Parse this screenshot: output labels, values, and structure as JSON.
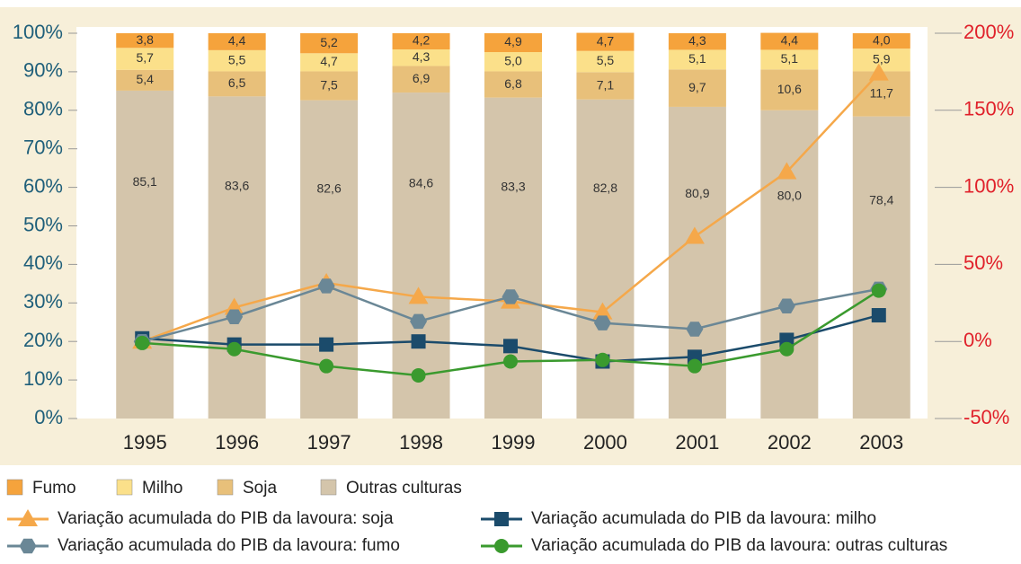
{
  "chart_data": {
    "type": "bar",
    "categories": [
      "1995",
      "1996",
      "1997",
      "1998",
      "1999",
      "2000",
      "2001",
      "2002",
      "2003"
    ],
    "ylim": [
      0,
      100
    ],
    "yticks": [
      {
        "value": 0,
        "label": "0%"
      },
      {
        "value": 10,
        "label": "10%"
      },
      {
        "value": 20,
        "label": "20%"
      },
      {
        "value": 30,
        "label": "30%"
      },
      {
        "value": 40,
        "label": "40%"
      },
      {
        "value": 50,
        "label": "50%"
      },
      {
        "value": 60,
        "label": "60%"
      },
      {
        "value": 70,
        "label": "70%"
      },
      {
        "value": 80,
        "label": "80%"
      },
      {
        "value": 90,
        "label": "90%"
      },
      {
        "value": 100,
        "label": "100%"
      }
    ],
    "y2lim": [
      -50,
      200
    ],
    "y2ticks": [
      {
        "value": -50,
        "label": "-50%"
      },
      {
        "value": 0,
        "label": "0%"
      },
      {
        "value": 50,
        "label": "50%"
      },
      {
        "value": 100,
        "label": "100%"
      },
      {
        "value": 150,
        "label": "150%"
      },
      {
        "value": 200,
        "label": "200%"
      }
    ],
    "stacked": true,
    "series": [
      {
        "name": "Fumo",
        "color": "#f5a33c",
        "values": [
          3.8,
          4.4,
          5.2,
          4.2,
          4.9,
          4.7,
          4.3,
          4.4,
          4.0
        ],
        "value_labels": [
          "3,8",
          "4,4",
          "5,2",
          "4,2",
          "4,9",
          "4,7",
          "4,3",
          "4,4",
          "4,0"
        ]
      },
      {
        "name": "Milho",
        "color": "#fbe08a",
        "values": [
          5.7,
          5.5,
          4.7,
          4.3,
          5.0,
          5.5,
          5.1,
          5.1,
          5.9
        ],
        "value_labels": [
          "5,7",
          "5,5",
          "4,7",
          "4,3",
          "5,0",
          "5,5",
          "5,1",
          "5,1",
          "5,9"
        ]
      },
      {
        "name": "Soja",
        "color": "#e8c07a",
        "values": [
          5.4,
          6.5,
          7.5,
          6.9,
          6.8,
          7.1,
          9.7,
          10.6,
          11.7
        ],
        "value_labels": [
          "5,4",
          "6,5",
          "7,5",
          "6,9",
          "6,8",
          "7,1",
          "9,7",
          "10,6",
          "11,7"
        ]
      },
      {
        "name": "Outras culturas",
        "color": "#d4c5ab",
        "values": [
          85.1,
          83.6,
          82.6,
          84.6,
          83.3,
          82.8,
          80.9,
          80.0,
          78.4
        ],
        "value_labels": [
          "85,1",
          "83,6",
          "82,6",
          "84,6",
          "83,3",
          "82,8",
          "80,9",
          "80,0",
          "78,4"
        ]
      },
      {
        "name": "Variação acumulada do PIB da lavoura: soja",
        "type": "line",
        "axis": "y2",
        "marker": "triangle",
        "color": "#f5a84a",
        "values": [
          0,
          22,
          38,
          29,
          26,
          19,
          68,
          110,
          174
        ]
      },
      {
        "name": "Variação acumulada do PIB da lavoura: milho",
        "type": "line",
        "axis": "y2",
        "marker": "square",
        "color": "#1b4b6b",
        "values": [
          2,
          -2,
          -2,
          0,
          -3,
          -13,
          -10,
          1,
          17
        ]
      },
      {
        "name": "Variação acumulada do PIB da lavoura: fumo",
        "type": "line",
        "axis": "y2",
        "marker": "hexagon",
        "color": "#6a8796",
        "values": [
          0,
          16,
          36,
          13,
          29,
          12,
          8,
          23,
          34
        ]
      },
      {
        "name": "Variação acumulada do PIB da lavoura: outras culturas",
        "type": "line",
        "axis": "y2",
        "marker": "circle",
        "color": "#3a9a2e",
        "values": [
          -1,
          -5,
          -16,
          -22,
          -13,
          -12,
          -16,
          -5,
          33
        ]
      }
    ]
  }
}
